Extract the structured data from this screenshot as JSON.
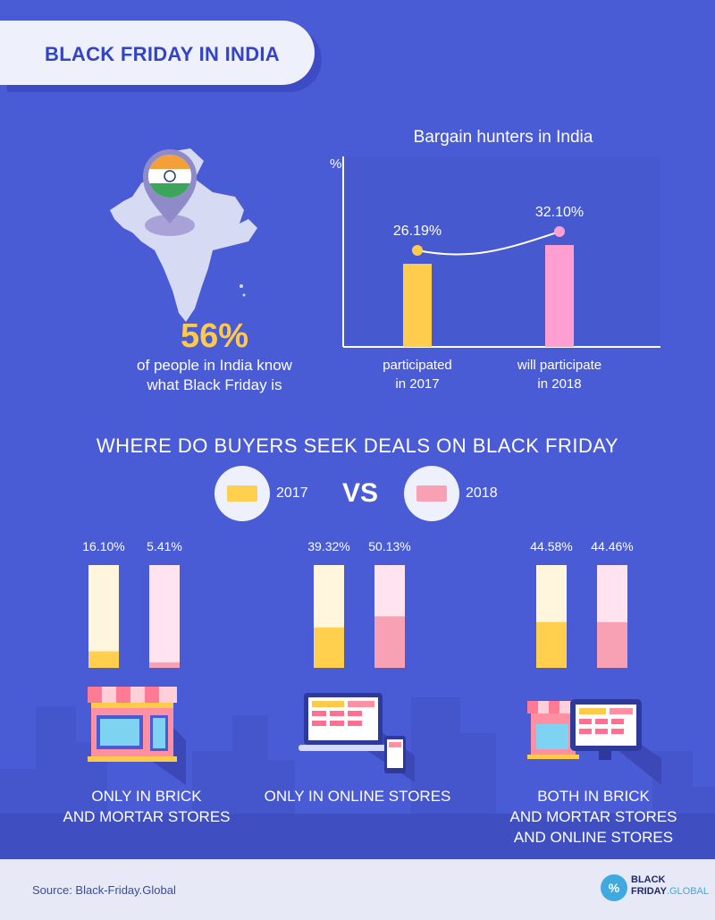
{
  "header": {
    "title": "BLACK FRIDAY IN INDIA"
  },
  "india": {
    "percent": "56%",
    "desc_line1": "of people in India know",
    "desc_line2": "what Black Friday is"
  },
  "chart_data": [
    {
      "type": "bar",
      "title": "Bargain hunters in India",
      "ylabel": "%",
      "categories": [
        "participated in 2017",
        "will participate in 2018"
      ],
      "category_lines": [
        [
          "participated",
          "in 2017"
        ],
        [
          "will participate",
          "in 2018"
        ]
      ],
      "values": [
        26.19,
        32.1
      ],
      "labels": [
        "26.19%",
        "32.10%"
      ],
      "colors": [
        "#ffcc4d",
        "#ff9ed1"
      ],
      "ylim": [
        0,
        60
      ]
    },
    {
      "type": "bar",
      "title": "WHERE DO BUYERS SEEK DEALS ON BLACK FRIDAY",
      "categories": [
        "ONLY IN BRICK AND MORTAR STORES",
        "ONLY IN ONLINE STORES",
        "BOTH IN BRICK AND MORTAR STORES AND ONLINE STORES"
      ],
      "series": [
        {
          "name": "2017",
          "values": [
            16.1,
            39.32,
            44.58
          ],
          "labels": [
            "16.10%",
            "39.32%",
            "44.58%"
          ],
          "color": "#ffcf4d",
          "track_color": "#fff6dd"
        },
        {
          "name": "2018",
          "values": [
            5.41,
            50.13,
            44.46
          ],
          "labels": [
            "5.41%",
            "50.13%",
            "44.46%"
          ],
          "color": "#f8a0b4",
          "track_color": "#ffe3ee"
        }
      ],
      "ylim": [
        0,
        100
      ]
    }
  ],
  "comparison": {
    "vs": "VS",
    "stores": [
      {
        "lines": [
          "ONLY IN BRICK",
          "AND MORTAR STORES"
        ]
      },
      {
        "lines": [
          "ONLY IN ONLINE STORES"
        ]
      },
      {
        "lines": [
          "BOTH IN BRICK",
          "AND MORTAR STORES",
          "AND ONLINE STORES"
        ]
      }
    ]
  },
  "footer": {
    "source": "Source: Black-Friday.Global",
    "logo_line1": "BLACK",
    "logo_line2": "FRIDAY",
    "logo_line3": ".GLOBAL",
    "logo_glyph": "%"
  },
  "colors": {
    "background": "#4a5bd6",
    "yellow": "#ffcc4d",
    "pink": "#ff9ed1"
  }
}
